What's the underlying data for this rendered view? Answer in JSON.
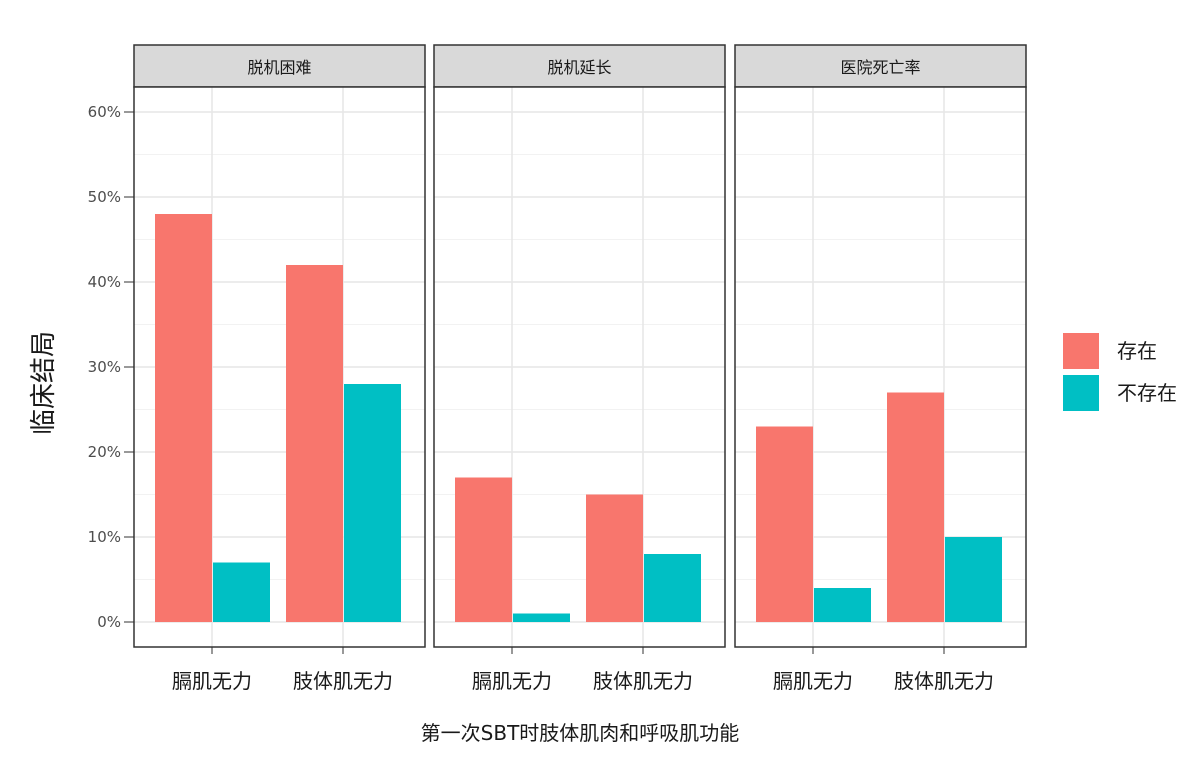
{
  "chart_data": {
    "type": "bar",
    "ylabel": "临床结局",
    "xlabel": "第一次SBT时肢体肌肉和呼吸肌功能",
    "ylim": [
      0,
      0.62
    ],
    "yticks": [
      0,
      0.1,
      0.2,
      0.3,
      0.4,
      0.5,
      0.6
    ],
    "ytick_labels": [
      "0%",
      "10%",
      "20%",
      "30%",
      "40%",
      "50%",
      "60%"
    ],
    "categories": [
      "膈肌无力",
      "肢体肌无力"
    ],
    "legend": {
      "position": "right",
      "items": [
        {
          "name": "存在",
          "color": "#F8766D"
        },
        {
          "name": "不存在",
          "color": "#00BFC4"
        }
      ]
    },
    "facets": [
      {
        "title": "脱机困难",
        "series": [
          {
            "name": "存在",
            "values": [
              0.48,
              0.42
            ]
          },
          {
            "name": "不存在",
            "values": [
              0.07,
              0.28
            ]
          }
        ]
      },
      {
        "title": "脱机延长",
        "series": [
          {
            "name": "存在",
            "values": [
              0.17,
              0.15
            ]
          },
          {
            "name": "不存在",
            "values": [
              0.01,
              0.08
            ]
          }
        ]
      },
      {
        "title": "医院死亡率",
        "series": [
          {
            "name": "存在",
            "values": [
              0.23,
              0.27
            ]
          },
          {
            "name": "不存在",
            "values": [
              0.04,
              0.1
            ]
          }
        ]
      }
    ],
    "grid": true
  }
}
